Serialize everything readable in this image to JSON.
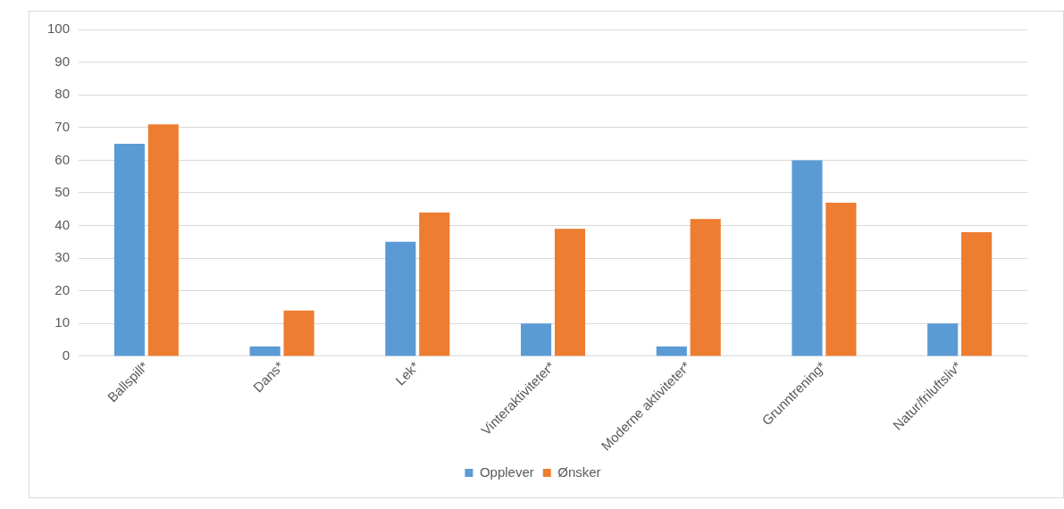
{
  "chart_data": {
    "type": "bar",
    "categories": [
      "Ballspill*",
      "Dans*",
      "Lek*",
      "Vinteraktiviteter*",
      "Moderne aktiviteter*",
      "Grunntrening*",
      "Natur/friluftsliv*"
    ],
    "series": [
      {
        "name": "Opplever",
        "color": "#5b9bd5",
        "values": [
          65,
          3,
          35,
          10,
          3,
          60,
          10
        ]
      },
      {
        "name": "Ønsker",
        "color": "#ed7d31",
        "values": [
          71,
          14,
          44,
          39,
          42,
          47,
          38
        ]
      }
    ],
    "ylim": [
      0,
      100
    ],
    "yticks": [
      0,
      10,
      20,
      30,
      40,
      50,
      60,
      70,
      80,
      90,
      100
    ],
    "grid": "y",
    "legend": "bottom"
  }
}
